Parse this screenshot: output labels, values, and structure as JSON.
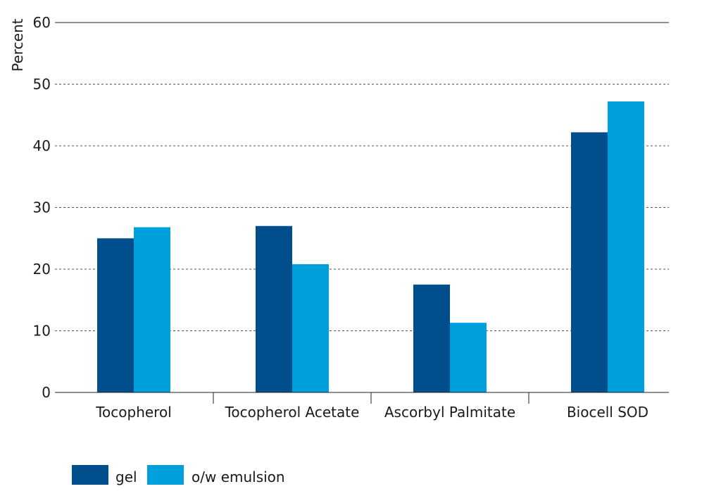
{
  "chart_data": {
    "type": "bar",
    "title": "",
    "xlabel": "",
    "ylabel": "Percent",
    "ylim": [
      0,
      60
    ],
    "yticks": [
      0,
      10,
      20,
      30,
      40,
      50,
      60
    ],
    "grid": true,
    "legend_position": "bottom-left",
    "categories": [
      "Tocopherol",
      "Tocopherol Acetate",
      "Ascorbyl Palmitate",
      "Biocell SOD"
    ],
    "series": [
      {
        "name": "gel",
        "color": "#004f8c",
        "values": [
          25,
          27,
          17.5,
          42.2
        ]
      },
      {
        "name": "o/w emulsion",
        "color": "#009fde",
        "values": [
          26.8,
          20.8,
          11.3,
          47.2
        ]
      }
    ]
  }
}
